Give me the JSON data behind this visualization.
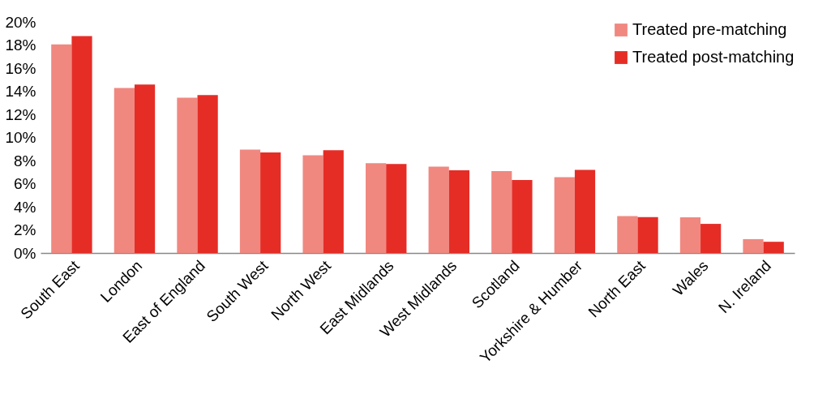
{
  "chart_data": {
    "type": "bar",
    "categories": [
      "South East",
      "London",
      "East of England",
      "South West",
      "North West",
      "East Midlands",
      "West Midlands",
      "Scotland",
      "Yorkshire & Humber",
      "North East",
      "Wales",
      "N. Ireland"
    ],
    "series": [
      {
        "name": "Treated  pre-matching",
        "color": "#f08880",
        "values": [
          18.06,
          14.28,
          13.43,
          8.94,
          8.45,
          7.78,
          7.48,
          7.08,
          6.57,
          3.19,
          3.08,
          1.2
        ]
      },
      {
        "name": "Treated post-matching",
        "color": "#e52d26",
        "values": [
          18.77,
          14.58,
          13.66,
          8.7,
          8.89,
          7.71,
          7.15,
          6.32,
          7.2,
          3.1,
          2.52,
          0.97
        ]
      }
    ],
    "ylim": [
      0,
      20
    ],
    "yticks": [
      {
        "value": 0,
        "label": "0%"
      },
      {
        "value": 2,
        "label": "2%"
      },
      {
        "value": 4,
        "label": "4%"
      },
      {
        "value": 6,
        "label": "6%"
      },
      {
        "value": 8,
        "label": "8%"
      },
      {
        "value": 10,
        "label": "10%"
      },
      {
        "value": 12,
        "label": "12%"
      },
      {
        "value": 14,
        "label": "14%"
      },
      {
        "value": 16,
        "label": "16%"
      },
      {
        "value": 18,
        "label": "18%"
      },
      {
        "value": 20,
        "label": "20%"
      }
    ],
    "grid": false,
    "legend": "top right"
  }
}
